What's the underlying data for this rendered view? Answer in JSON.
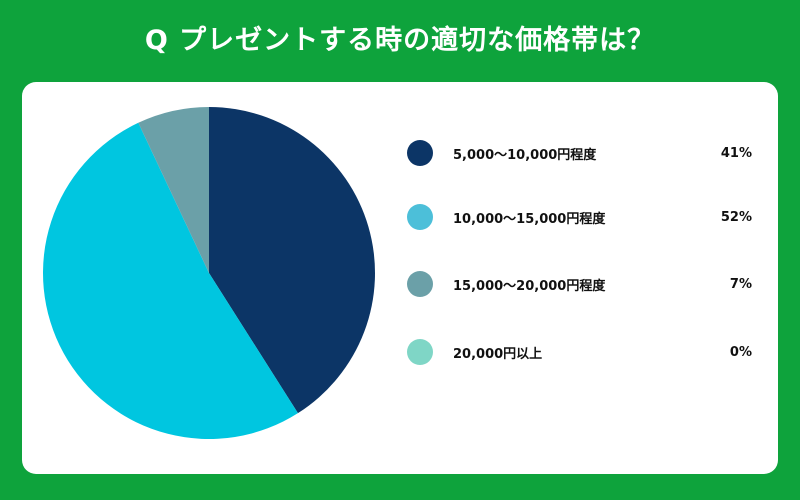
{
  "chart_data": {
    "type": "pie",
    "title": "Q プレゼントする時の適切な価格帯は？",
    "categories": [
      "5,000〜10,000円程度",
      "10,000〜15,000円程度",
      "15,000〜20,000円程度",
      "20,000円以上"
    ],
    "values": [
      41,
      52,
      7,
      0
    ],
    "value_labels": [
      "41%",
      "52%",
      "7%",
      "0%"
    ],
    "colors": [
      "#0c3566",
      "#00c6e0",
      "#6ba0a8",
      "#7fd6c6"
    ],
    "legend_dot_colors": [
      "#0c3566",
      "#4cbfd9",
      "#6ba0a8",
      "#7fd6c6"
    ],
    "legend_position": "right"
  }
}
